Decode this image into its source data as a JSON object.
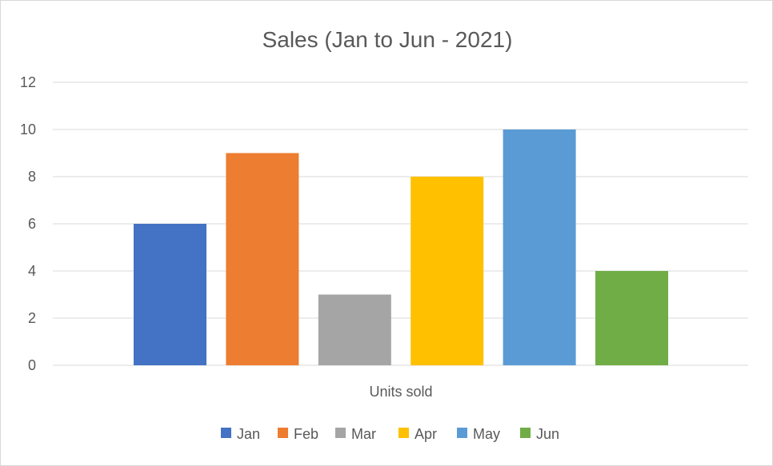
{
  "chart_data": {
    "type": "bar",
    "title": "Sales (Jan to Jun - 2021)",
    "xlabel": "Units sold",
    "ylabel": "",
    "categories": [
      "Units sold"
    ],
    "series": [
      {
        "name": "Jan",
        "values": [
          6
        ],
        "color": "#4472C4"
      },
      {
        "name": "Feb",
        "values": [
          9
        ],
        "color": "#ED7D31"
      },
      {
        "name": "Mar",
        "values": [
          3
        ],
        "color": "#A5A5A5"
      },
      {
        "name": "Apr",
        "values": [
          8
        ],
        "color": "#FFC000"
      },
      {
        "name": "May",
        "values": [
          10
        ],
        "color": "#5B9BD5"
      },
      {
        "name": "Jun",
        "values": [
          4
        ],
        "color": "#70AD47"
      }
    ],
    "ylim": [
      0,
      12
    ],
    "yticks": [
      "0",
      "2",
      "4",
      "6",
      "8",
      "10",
      "12"
    ],
    "grid": true,
    "legend": "bottom"
  }
}
